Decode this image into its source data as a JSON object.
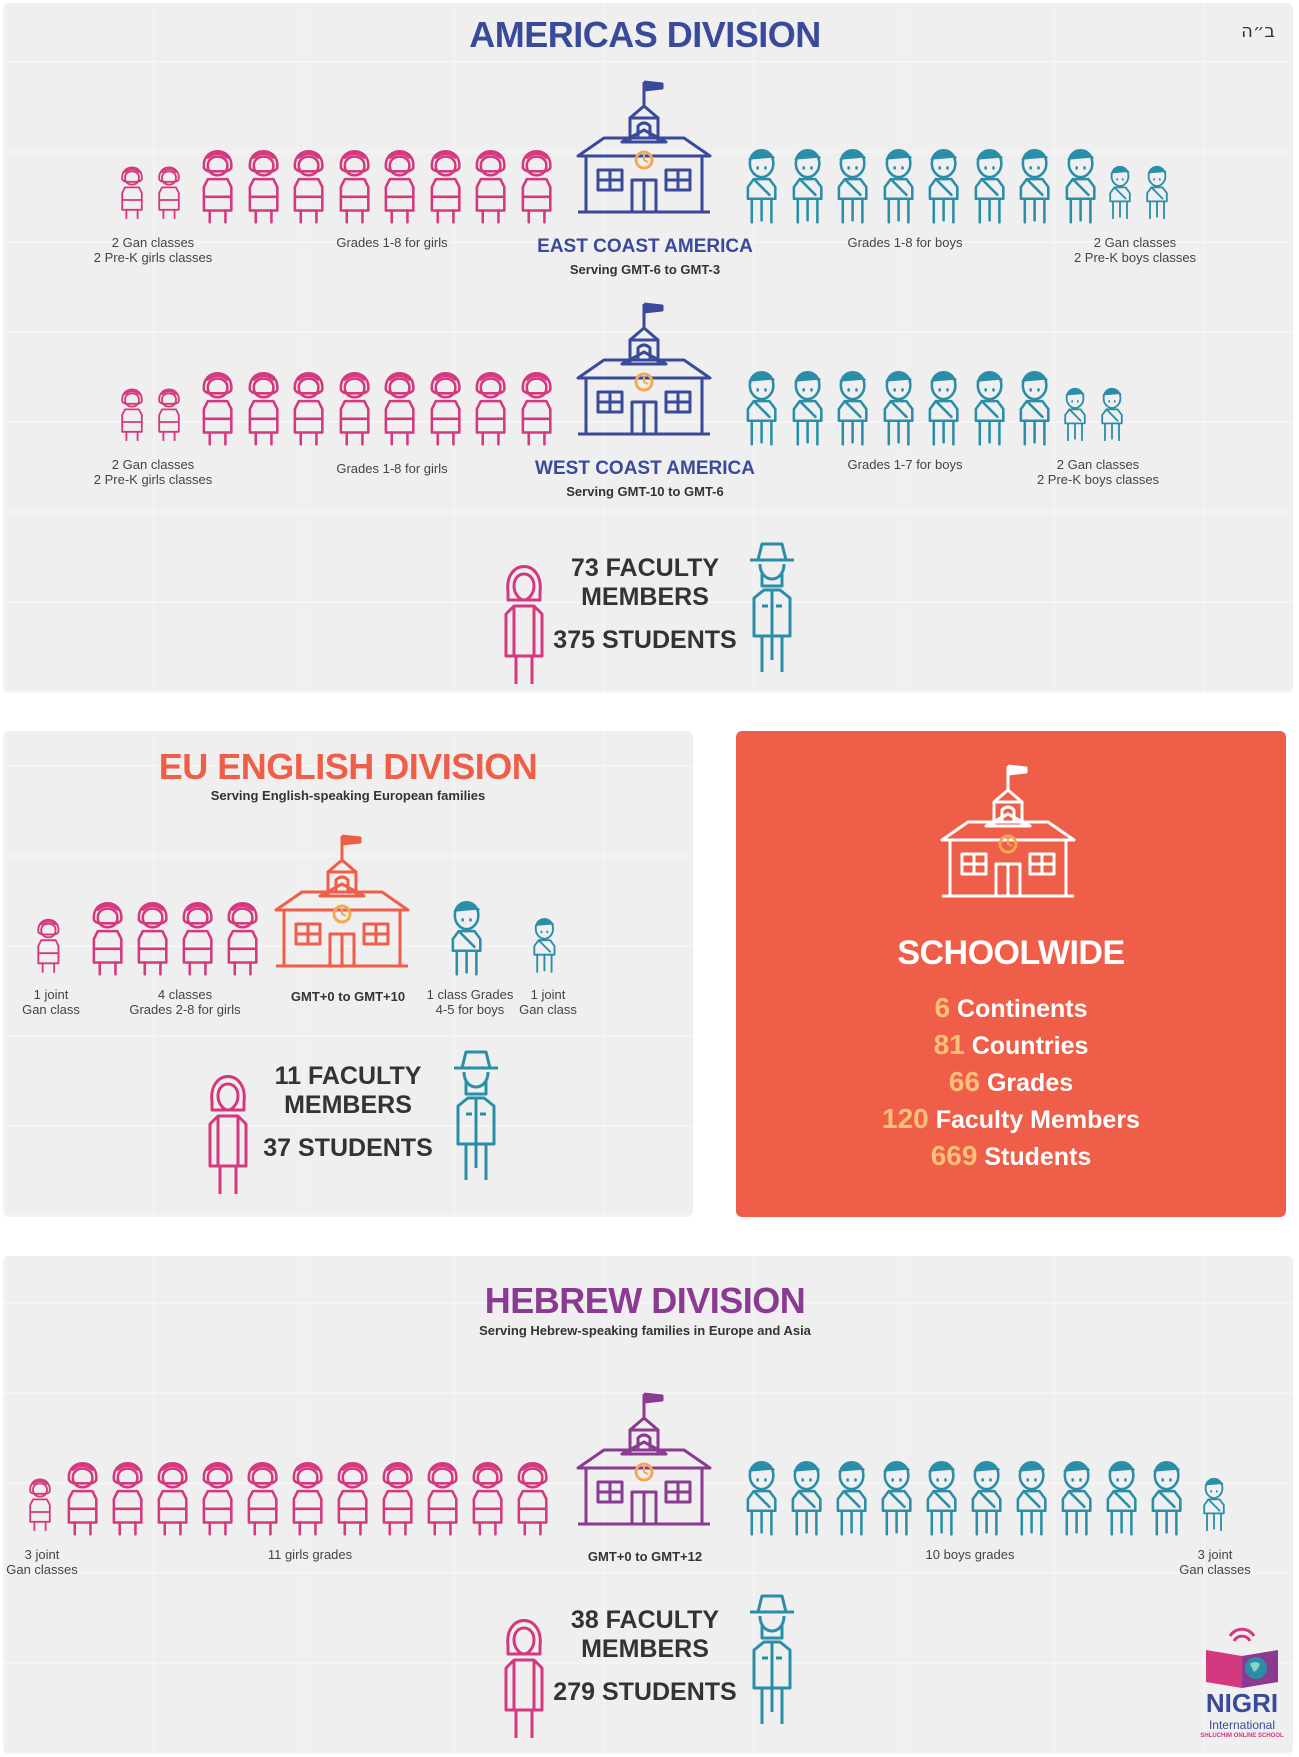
{
  "header": {
    "hebrew_mark": "ב״ה"
  },
  "colors": {
    "girls": "#d4387e",
    "boys": "#2a8ea8",
    "americas": "#3a4a9a",
    "eu": "#ee5e48",
    "hebrew": "#8a3a90",
    "gold": "#f4a950",
    "schoolwide_bg": "#ee5e48",
    "stat_number": "#fcc078"
  },
  "icons": [
    "girl-icon",
    "boy-icon",
    "schoolhouse-icon",
    "woman-teacher-icon",
    "man-teacher-icon",
    "nigri-logo"
  ],
  "americas": {
    "title": "AMERICAS DIVISION",
    "east": {
      "name": "EAST COAST AMERICA",
      "serving": "Serving GMT-6 to GMT-3",
      "girls_gan_label_1": "2 Gan classes",
      "girls_gan_label_2": "2 Pre-K girls classes",
      "girls_grades_label": "Grades 1-8 for girls",
      "boys_grades_label": "Grades 1-8 for boys",
      "boys_gan_label_1": "2 Gan classes",
      "boys_gan_label_2": "2 Pre-K boys classes",
      "girls_small_count": 2,
      "girls_grades_count": 8,
      "boys_grades_count": 8,
      "boys_small_count": 2
    },
    "west": {
      "name": "WEST COAST AMERICA",
      "serving": "Serving GMT-10 to GMT-6",
      "girls_gan_label_1": "2 Gan classes",
      "girls_gan_label_2": "2 Pre-K girls classes",
      "girls_grades_label": "Grades 1-8 for girls",
      "boys_grades_label": "Grades 1-7 for boys",
      "boys_gan_label_1": "2 Gan classes",
      "boys_gan_label_2": "2 Pre-K boys classes",
      "girls_small_count": 2,
      "girls_grades_count": 8,
      "boys_grades_count": 7,
      "boys_small_count": 2
    },
    "faculty_line_1": "73 FACULTY",
    "faculty_line_2": "MEMBERS",
    "students": "375 STUDENTS"
  },
  "eu": {
    "title": "EU ENGLISH DIVISION",
    "subtitle": "Serving English-speaking European families",
    "gmt": "GMT+0 to GMT+10",
    "girls_gan_label_1": "1 joint",
    "girls_gan_label_2": "Gan class",
    "girls_grades_label_1": "4 classes",
    "girls_grades_label_2": "Grades 2-8 for girls",
    "boys_grades_label_1": "1 class Grades",
    "boys_grades_label_2": "4-5 for boys",
    "boys_gan_label_1": "1 joint",
    "boys_gan_label_2": "Gan class",
    "faculty_line_1": "11 FACULTY",
    "faculty_line_2": "MEMBERS",
    "students": "37 STUDENTS",
    "girls_small_count": 1,
    "girls_grades_count": 4,
    "boys_grades_count": 1,
    "boys_small_count": 1
  },
  "schoolwide": {
    "title": "SCHOOLWIDE",
    "stats": [
      {
        "number": "6",
        "label": "Continents"
      },
      {
        "number": "81",
        "label": "Countries"
      },
      {
        "number": "66",
        "label": "Grades"
      },
      {
        "number": "120",
        "label": "Faculty Members"
      },
      {
        "number": "669",
        "label": "Students"
      }
    ]
  },
  "hebrew": {
    "title": "HEBREW DIVISION",
    "subtitle": "Serving Hebrew-speaking families in Europe and Asia",
    "gmt": "GMT+0 to GMT+12",
    "girls_gan_label_1": "3 joint",
    "girls_gan_label_2": "Gan classes",
    "girls_grades_label": "11 girls grades",
    "boys_grades_label": "10 boys grades",
    "boys_gan_label_1": "3 joint",
    "boys_gan_label_2": "Gan classes",
    "faculty_line_1": "38 FACULTY",
    "faculty_line_2": "MEMBERS",
    "students": "279 STUDENTS",
    "girls_small_count": 1,
    "girls_grades_count": 11,
    "boys_grades_count": 10,
    "boys_small_count": 1
  },
  "logo": {
    "name": "NIGRI",
    "line2": "International",
    "line3": "SHLUCHIM ONLINE SCHOOL"
  }
}
